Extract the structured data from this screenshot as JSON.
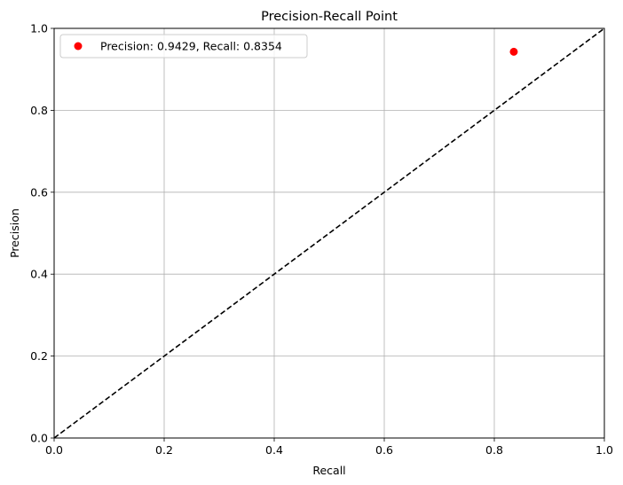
{
  "chart_data": {
    "type": "scatter",
    "title": "Precision-Recall Point",
    "xlabel": "Recall",
    "ylabel": "Precision",
    "xlim": [
      0.0,
      1.0
    ],
    "ylim": [
      0.0,
      1.0
    ],
    "x_ticks": [
      0.0,
      0.2,
      0.4,
      0.6,
      0.8,
      1.0
    ],
    "y_ticks": [
      0.0,
      0.2,
      0.4,
      0.6,
      0.8,
      1.0
    ],
    "x_tick_labels": [
      "0.0",
      "0.2",
      "0.4",
      "0.6",
      "0.8",
      "1.0"
    ],
    "y_tick_labels": [
      "0.0",
      "0.2",
      "0.4",
      "0.6",
      "0.8",
      "1.0"
    ],
    "grid": true,
    "legend_position": "upper-left",
    "series": [
      {
        "name": "Precision: 0.9429, Recall: 0.8354",
        "x": [
          0.8354
        ],
        "y": [
          0.9429
        ],
        "color": "#ff0000"
      }
    ],
    "reference_line": {
      "x": [
        0.0,
        1.0
      ],
      "y": [
        0.0,
        1.0
      ],
      "style": "dashed",
      "color": "#000000"
    }
  }
}
